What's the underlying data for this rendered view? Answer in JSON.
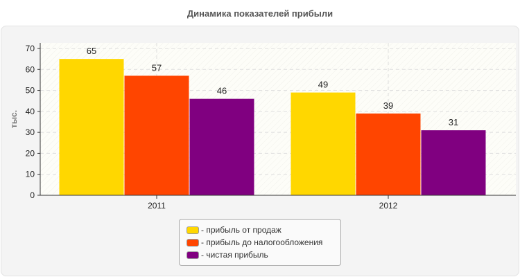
{
  "chart_data": {
    "type": "bar",
    "title": "Динамика показателей прибыли",
    "ylabel": "тыс.",
    "xlabel": "",
    "ylim": [
      0,
      70
    ],
    "yticks": [
      "0",
      "10",
      "20",
      "30",
      "40",
      "50",
      "60",
      "70"
    ],
    "grid": true,
    "legend_position": "bottom",
    "categories": [
      "2011",
      "2012"
    ],
    "series": [
      {
        "name": "- прибыль от продаж",
        "color": "#FFD700",
        "values": [
          65,
          49
        ]
      },
      {
        "name": "- прибыль до налогообложения",
        "color": "#FF4500",
        "values": [
          57,
          39
        ]
      },
      {
        "name": "- чистая прибыль",
        "color": "#800080",
        "values": [
          46,
          31
        ]
      }
    ]
  }
}
